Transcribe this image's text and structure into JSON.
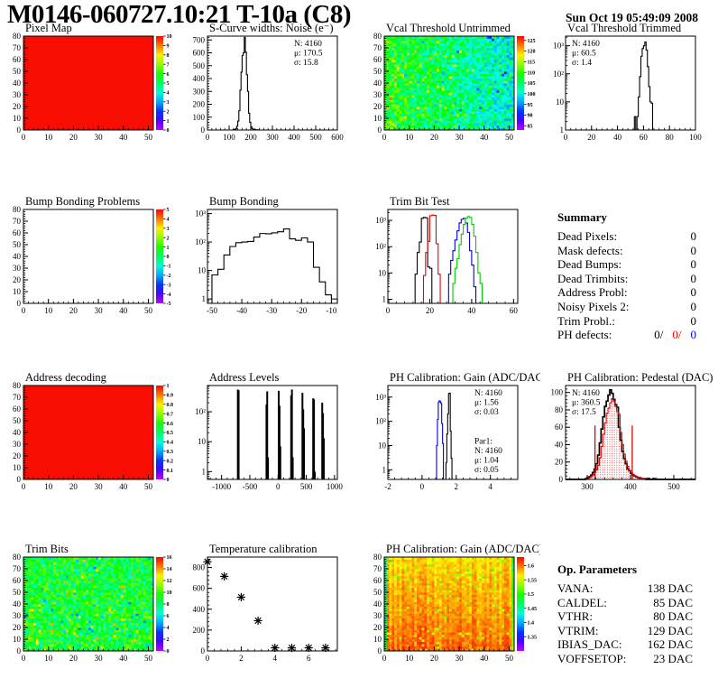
{
  "header": {
    "title": "M0146-060727.10:21 T-10a (C8)",
    "datetime": "Sun Oct 19 05:49:09 2008"
  },
  "summary": {
    "title": "Summary",
    "rows": [
      [
        "Dead Pixels:",
        "0"
      ],
      [
        "Mask defects:",
        "0"
      ],
      [
        "Dead Bumps:",
        "0"
      ],
      [
        "Dead Trimbits:",
        "0"
      ],
      [
        "Address Probl:",
        "0"
      ],
      [
        "Noisy Pixels 2:",
        "0"
      ],
      [
        "Trim Probl.:",
        "0"
      ]
    ],
    "ph_defects_label": "PH defects:",
    "ph_defects_values": [
      "0/",
      "0/",
      "0"
    ]
  },
  "op_parameters": {
    "title": "Op. Parameters",
    "rows": [
      [
        "VANA:",
        "138 DAC"
      ],
      [
        "CALDEL:",
        "85 DAC"
      ],
      [
        "VTHR:",
        "80 DAC"
      ],
      [
        "VTRIM:",
        "129 DAC"
      ],
      [
        "IBIAS_DAC:",
        "162 DAC"
      ],
      [
        "VOFFSETOP:",
        "23 DAC"
      ]
    ]
  },
  "colors": {
    "root_red": "#f90d02",
    "stat_red": "#e60000",
    "stat_blue": "#0000dd",
    "green": "#00cc00"
  },
  "chart_data": [
    {
      "id": "pixel-map",
      "type": "heatmap",
      "title": "Pixel Map",
      "xlim": [
        0,
        52
      ],
      "xticks": [
        0,
        10,
        20,
        30,
        40,
        50
      ],
      "ylim": [
        0,
        80
      ],
      "yticks": [
        0,
        10,
        20,
        30,
        40,
        50,
        60,
        70,
        80
      ],
      "fill": "uniform",
      "uniform_color": "#f90d02",
      "colorbar": {
        "min": 0,
        "max": 10,
        "labels": [
          0,
          1,
          2,
          3,
          4,
          5,
          6,
          7,
          8,
          9,
          10
        ]
      }
    },
    {
      "id": "scurve-noise",
      "type": "hist",
      "title": "S-Curve widths: Noise (e⁻)",
      "xlim": [
        0,
        600
      ],
      "xticks": [
        0,
        100,
        200,
        300,
        400,
        500,
        600
      ],
      "ylog": false,
      "ylim": [
        0,
        730
      ],
      "yticks": [
        0,
        100,
        200,
        300,
        400,
        500,
        600,
        700
      ],
      "series": [
        {
          "color": "#000000",
          "x0": 120,
          "binw": 5,
          "values": [
            3,
            5,
            12,
            30,
            70,
            150,
            310,
            450,
            580,
            600,
            720,
            605,
            430,
            300,
            130,
            60,
            25,
            12,
            5,
            3,
            2,
            1,
            1
          ]
        }
      ],
      "stats": [
        {
          "color": "#000000",
          "lines": [
            "N: 4160",
            "μ: 170.5",
            "σ: 15.8"
          ]
        }
      ]
    },
    {
      "id": "vcal-untrimmed",
      "type": "heatmap",
      "title": "Vcal Threshold Untrimmed",
      "xlim": [
        0,
        52
      ],
      "xticks": [
        0,
        10,
        20,
        30,
        40,
        50
      ],
      "ylim": [
        0,
        80
      ],
      "yticks": [
        0,
        10,
        20,
        30,
        40,
        50,
        60,
        70,
        80
      ],
      "fill": "noise",
      "noise": {
        "seed": 11,
        "base": 109,
        "xslope": -9,
        "amp": 5.5,
        "p_hi": 0.05,
        "hi_amp": 9,
        "p_lo": 0.05,
        "lo_amp": 6
      },
      "scale": {
        "min": 83,
        "max": 127
      },
      "colorbar": {
        "min": 83,
        "max": 127,
        "labels": [
          85,
          90,
          95,
          100,
          105,
          110,
          115,
          120,
          125
        ]
      }
    },
    {
      "id": "vcal-trimmed",
      "type": "hist",
      "title": "Vcal Threshold Trimmed",
      "xlim": [
        0,
        100
      ],
      "xticks": [
        0,
        20,
        40,
        60,
        80,
        100
      ],
      "ylog": true,
      "ylim": [
        1,
        2200
      ],
      "series": [
        {
          "color": "#000000",
          "x0": 53,
          "binw": 1,
          "values": [
            3,
            0,
            3,
            15,
            80,
            420,
            800,
            1000,
            1350,
            700,
            180,
            35,
            10,
            9
          ]
        }
      ],
      "stats": [
        {
          "color": "#000000",
          "lines": [
            "N: 4160",
            "μ: 60.5",
            "σ:  1.4"
          ]
        }
      ],
      "stats_pos": "left"
    },
    {
      "id": "bump-problems",
      "type": "heatmap",
      "title": "Bump Bonding Problems",
      "xlim": [
        0,
        52
      ],
      "xticks": [
        0,
        10,
        20,
        30,
        40,
        50
      ],
      "ylim": [
        0,
        80
      ],
      "yticks": [
        0,
        10,
        20,
        30,
        40,
        50,
        60,
        70,
        80
      ],
      "fill": "none",
      "colorbar": {
        "min": -5,
        "max": 5,
        "labels": [
          -5,
          -4,
          -3,
          -2,
          -1,
          0,
          1,
          2,
          3,
          4,
          5
        ]
      }
    },
    {
      "id": "bump-bonding",
      "type": "hist",
      "title": "Bump Bonding",
      "xlim": [
        -51.5,
        -8
      ],
      "xticks": [
        -50,
        -40,
        -30,
        -20,
        -10
      ],
      "ylog": true,
      "ylim": [
        0.7,
        1400
      ],
      "series": [
        {
          "color": "#000000",
          "x0": -50,
          "binw": 2,
          "values": [
            7,
            11,
            35,
            70,
            95,
            100,
            105,
            150,
            200,
            195,
            210,
            230,
            290,
            130,
            115,
            140,
            100,
            13,
            4,
            1.4,
            1
          ]
        }
      ]
    },
    {
      "id": "trim-bit-test",
      "type": "hist",
      "title": "Trim Bit Test",
      "xlim": [
        0,
        62
      ],
      "xticks": [
        0,
        20,
        40,
        60
      ],
      "ylog": true,
      "ylim": [
        0.7,
        2600
      ],
      "series": [
        {
          "color": "#000000",
          "x0": 13,
          "binw": 1,
          "values": [
            9,
            60,
            150,
            1200,
            1300,
            1250,
            17,
            15
          ]
        },
        {
          "color": "#e60000",
          "x0": 17,
          "binw": 1,
          "values": [
            8,
            60,
            160,
            1500,
            1600,
            1550,
            130,
            9
          ]
        },
        {
          "color": "#0000dd",
          "x0": 29,
          "binw": 1,
          "values": [
            9,
            30,
            70,
            180,
            400,
            800,
            1100,
            1200,
            800,
            350,
            70,
            20,
            3
          ]
        },
        {
          "color": "#00cc00",
          "x0": 31,
          "binw": 1,
          "values": [
            4,
            15,
            35,
            120,
            300,
            700,
            1200,
            1400,
            1300,
            700,
            250,
            60,
            10,
            4
          ]
        }
      ]
    },
    {
      "id": "addr-decoding",
      "type": "heatmap",
      "title": "Address decoding",
      "xlim": [
        0,
        52
      ],
      "xticks": [
        0,
        10,
        20,
        30,
        40,
        50
      ],
      "ylim": [
        0,
        80
      ],
      "yticks": [
        0,
        10,
        20,
        30,
        40,
        50,
        60,
        70,
        80
      ],
      "fill": "uniform",
      "uniform_color": "#f90d02",
      "colorbar": {
        "min": 0,
        "max": 1,
        "labels": [
          0,
          0.1,
          0.2,
          0.3,
          0.4,
          0.5,
          0.6,
          0.7,
          0.8,
          0.9,
          1
        ]
      }
    },
    {
      "id": "addr-levels",
      "type": "hist",
      "title": "Address Levels",
      "xlim": [
        -1250,
        1050
      ],
      "xticks": [
        -1000,
        -500,
        0,
        500,
        1000
      ],
      "ylog": true,
      "ylim": [
        0.55,
        750
      ],
      "spikes": [
        [
          -712,
          550
        ],
        [
          -698,
          520
        ],
        [
          -205,
          175
        ],
        [
          -192,
          480
        ],
        [
          -178,
          3
        ],
        [
          12,
          500
        ],
        [
          26,
          160
        ],
        [
          40,
          7
        ],
        [
          232,
          350
        ],
        [
          246,
          550
        ],
        [
          260,
          3
        ],
        [
          432,
          430
        ],
        [
          446,
          120
        ],
        [
          460,
          28
        ],
        [
          622,
          280
        ],
        [
          636,
          260
        ],
        [
          650,
          1
        ],
        [
          782,
          200
        ],
        [
          796,
          90
        ],
        [
          810,
          13
        ]
      ]
    },
    {
      "id": "ph-gain-hist",
      "type": "hist",
      "title": "PH Calibration: Gain (ADC/DAC)",
      "xlim": [
        -2,
        5.6
      ],
      "xticks": [
        -2,
        0,
        2,
        4
      ],
      "ylog": true,
      "ylim": [
        0.4,
        3000
      ],
      "series": [
        {
          "color": "#000000",
          "x0": 1.4,
          "binw": 0.05,
          "values": [
            2,
            30,
            200,
            1400,
            1450,
            40,
            3
          ]
        },
        {
          "color": "#0000dd",
          "x0": 0.85,
          "binw": 0.05,
          "values": [
            10,
            120,
            600,
            700,
            650,
            550,
            80,
            12
          ]
        }
      ],
      "stats": [
        {
          "color": "#000000",
          "lines": [
            "N: 4160",
            "μ: 1.56",
            "σ: 0.03"
          ]
        },
        {
          "color": "#0000dd",
          "gap_before": 22,
          "lines": [
            "Par1:",
            "N: 4160",
            "μ: 1.04",
            "σ: 0.05"
          ]
        }
      ]
    },
    {
      "id": "ph-pedestal",
      "type": "hist",
      "title": "PH Calibration: Pedestal (DAC)",
      "xlim": [
        250,
        550
      ],
      "xticks": [
        300,
        400,
        500
      ],
      "ylog": false,
      "ylim": [
        0,
        108
      ],
      "yticks": [
        0,
        20,
        40,
        60,
        80,
        100
      ],
      "series": [
        {
          "color": "#000000",
          "x0": 296,
          "binw": 4,
          "lw": 1.7,
          "values": [
            1,
            2,
            3,
            5,
            8,
            12,
            18,
            28,
            42,
            58,
            72,
            84,
            90,
            97,
            103,
            99,
            92,
            86,
            83,
            60,
            45,
            32,
            24,
            18,
            12,
            10,
            7,
            5,
            4,
            3,
            2,
            2,
            1,
            1,
            1,
            0,
            1,
            0,
            0,
            1
          ]
        },
        {
          "color": "#e60000",
          "x0": 300,
          "binw": 4,
          "fill": "dots",
          "values": [
            1,
            2,
            3,
            5,
            8,
            11,
            16,
            25,
            38,
            52,
            65,
            76,
            82,
            88,
            93,
            90,
            84,
            78,
            75,
            54,
            40,
            29,
            21,
            15,
            10,
            8,
            6,
            4,
            3,
            2,
            2,
            1,
            1,
            1
          ]
        }
      ],
      "vlines": [
        {
          "x": 318,
          "y": 62,
          "color": "#e60000"
        },
        {
          "x": 404,
          "y": 62,
          "color": "#e60000"
        }
      ],
      "stats": [
        {
          "color": "#000000",
          "lines": [
            "N: 4160"
          ]
        },
        {
          "color": "#e60000",
          "lines": [
            "μ: 360.5",
            "σ: 17.5"
          ]
        }
      ],
      "stats_pos": "left"
    },
    {
      "id": "trim-bits",
      "type": "heatmap",
      "title": "Trim Bits",
      "xlim": [
        0,
        52
      ],
      "xticks": [
        0,
        10,
        20,
        30,
        40,
        50
      ],
      "ylim": [
        0,
        80
      ],
      "yticks": [
        0,
        10,
        20,
        30,
        40,
        50,
        60,
        70,
        80
      ],
      "fill": "noise",
      "noise": {
        "seed": 23,
        "base": 8.9,
        "amp": 2.0,
        "p_hi": 0.05,
        "hi_amp": 3.2,
        "p_lo": 0.06,
        "lo_amp": 2.8
      },
      "scale": {
        "min": 0,
        "max": 16
      },
      "colorbar": {
        "min": 0,
        "max": 16,
        "labels": [
          0,
          2,
          4,
          6,
          8,
          10,
          12,
          14,
          16
        ]
      }
    },
    {
      "id": "temp-cal",
      "type": "scatter",
      "title": "Temperature calibration",
      "xlim": [
        0,
        7.7
      ],
      "xticks": [
        0,
        2,
        4,
        6
      ],
      "ylim": [
        0,
        900
      ],
      "yticks": [
        0,
        200,
        400,
        600,
        800
      ],
      "marker": "asterisk",
      "points": [
        [
          0,
          855
        ],
        [
          1,
          715
        ],
        [
          2,
          515
        ],
        [
          3,
          290
        ],
        [
          4,
          30
        ],
        [
          5,
          30
        ],
        [
          6,
          30
        ],
        [
          7,
          30
        ]
      ]
    },
    {
      "id": "ph-gain-map",
      "type": "heatmap",
      "title": "PH Calibration: Gain (ADC/DAC)",
      "xlim": [
        0,
        52
      ],
      "xticks": [
        0,
        10,
        20,
        30,
        40,
        50
      ],
      "ylim": [
        0,
        80
      ],
      "yticks": [
        0,
        10,
        20,
        30,
        40,
        50,
        60,
        70,
        80
      ],
      "fill": "noise",
      "noise": {
        "seed": 37,
        "base": 1.602,
        "yslope": -0.035,
        "amp": 0.013,
        "col_amp": 0.012,
        "p_lo": 0.04,
        "lo_amp": 0.05,
        "edge_low": [
          0.12,
          0.07
        ]
      },
      "scale": {
        "min": 1.3,
        "max": 1.63
      },
      "colorbar": {
        "min": 1.3,
        "max": 1.63,
        "labels": [
          1.35,
          1.4,
          1.45,
          1.5,
          1.55,
          1.6
        ]
      }
    }
  ]
}
